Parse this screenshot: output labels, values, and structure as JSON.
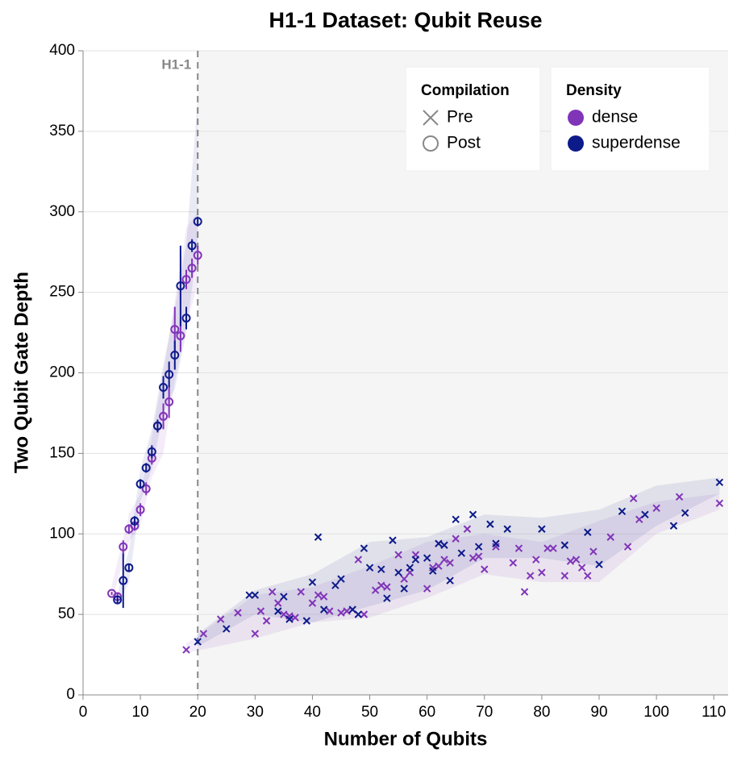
{
  "chart_data": {
    "type": "scatter",
    "title": "H1-1 Dataset: Qubit Reuse",
    "x_label": "Number of Qubits",
    "y_label": "Two Qubit Gate Depth",
    "xlim": [
      0,
      112.5
    ],
    "ylim": [
      0,
      400
    ],
    "xticks": [
      0,
      10,
      20,
      30,
      40,
      50,
      60,
      70,
      80,
      90,
      100,
      110
    ],
    "yticks": [
      0,
      50,
      100,
      150,
      200,
      250,
      300,
      350,
      400
    ],
    "grid": true,
    "threshold": {
      "x": 20,
      "label": "H1-1"
    },
    "legends": [
      {
        "title": "Compilation",
        "entries": [
          {
            "label": "Pre",
            "marker": "x"
          },
          {
            "label": "Post",
            "marker": "circle"
          }
        ]
      },
      {
        "title": "Density",
        "entries": [
          {
            "label": "dense",
            "color": "#8034b8"
          },
          {
            "label": "superdense",
            "color": "#0d1a8a"
          }
        ]
      }
    ],
    "bands": [
      {
        "density": "dense",
        "x": [
          5,
          8,
          10,
          12,
          14,
          16,
          18,
          20
        ],
        "lower": [
          58,
          95,
          105,
          135,
          150,
          195,
          230,
          255
        ],
        "upper": [
          68,
          112,
          125,
          160,
          200,
          245,
          290,
          300
        ]
      },
      {
        "density": "superdense",
        "x": [
          6,
          8,
          10,
          12,
          14,
          16,
          18,
          20
        ],
        "lower": [
          55,
          70,
          120,
          140,
          175,
          190,
          225,
          280
        ],
        "upper": [
          63,
          90,
          140,
          165,
          205,
          240,
          280,
          370
        ]
      },
      {
        "density": "dense",
        "x": [
          18,
          30,
          40,
          50,
          60,
          70,
          80,
          90,
          100,
          111
        ],
        "lower": [
          26,
          35,
          45,
          48,
          60,
          75,
          70,
          70,
          100,
          115
        ],
        "upper": [
          32,
          62,
          67,
          80,
          95,
          100,
          95,
          108,
          120,
          125
        ]
      },
      {
        "density": "superdense",
        "x": [
          20,
          30,
          40,
          50,
          60,
          70,
          80,
          90,
          100,
          111
        ],
        "lower": [
          30,
          50,
          45,
          55,
          65,
          85,
          85,
          80,
          105,
          125
        ],
        "upper": [
          38,
          65,
          75,
          95,
          98,
          112,
          110,
          115,
          130,
          135
        ]
      }
    ],
    "series": [
      {
        "density": "dense",
        "compilation": "Post",
        "x": [
          5,
          6,
          7,
          8,
          9,
          10,
          11,
          12,
          13,
          14,
          15,
          16,
          17,
          18,
          19,
          20
        ],
        "values": [
          63,
          61,
          92,
          103,
          105,
          115,
          128,
          147,
          167,
          173,
          182,
          227,
          223,
          258,
          265,
          273
        ],
        "errors": [
          1,
          2,
          4,
          3,
          3,
          4,
          4,
          4,
          3,
          8,
          10,
          14,
          10,
          6,
          6,
          6
        ]
      },
      {
        "density": "superdense",
        "compilation": "Post",
        "x": [
          6,
          7,
          8,
          9,
          10,
          11,
          12,
          13,
          14,
          15,
          16,
          17,
          18,
          19,
          20
        ],
        "values": [
          59,
          71,
          79,
          108,
          131,
          141,
          151,
          167,
          191,
          199,
          211,
          254,
          234,
          279,
          294
        ],
        "errors": [
          2,
          17,
          2,
          3,
          3,
          3,
          4,
          4,
          7,
          8,
          9,
          25,
          7,
          4,
          3
        ]
      },
      {
        "density": "dense",
        "compilation": "Pre",
        "x": [
          18,
          21,
          24,
          27,
          30,
          31,
          32,
          33,
          34,
          35,
          36,
          37,
          38,
          40,
          41,
          42,
          43,
          45,
          46,
          48,
          49,
          51,
          52,
          53,
          55,
          56,
          57,
          58,
          60,
          61,
          62,
          63,
          64,
          65,
          67,
          68,
          69,
          70,
          72,
          75,
          76,
          77,
          78,
          79,
          80,
          81,
          82,
          84,
          85,
          86,
          87,
          88,
          89,
          92,
          95,
          96,
          97,
          100,
          104,
          111
        ],
        "values": [
          28,
          38,
          47,
          51,
          38,
          52,
          46,
          64,
          57,
          50,
          49,
          48,
          64,
          57,
          62,
          61,
          52,
          51,
          52,
          84,
          50,
          65,
          68,
          67,
          87,
          72,
          76,
          87,
          66,
          79,
          80,
          84,
          82,
          97,
          103,
          85,
          86,
          78,
          92,
          82,
          91,
          64,
          74,
          84,
          76,
          91,
          91,
          74,
          83,
          84,
          79,
          74,
          89,
          98,
          92,
          122,
          109,
          116,
          123,
          119
        ]
      },
      {
        "density": "superdense",
        "compilation": "Pre",
        "x": [
          20,
          25,
          29,
          30,
          34,
          35,
          36,
          39,
          40,
          41,
          42,
          44,
          45,
          47,
          48,
          49,
          50,
          52,
          53,
          54,
          55,
          56,
          57,
          58,
          60,
          61,
          62,
          63,
          64,
          65,
          66,
          68,
          69,
          71,
          72,
          74,
          80,
          84,
          88,
          90,
          94,
          98,
          103,
          105,
          111
        ],
        "values": [
          33,
          41,
          62,
          62,
          52,
          61,
          47,
          46,
          70,
          98,
          53,
          68,
          72,
          53,
          50,
          91,
          79,
          78,
          60,
          96,
          76,
          66,
          79,
          84,
          85,
          77,
          94,
          93,
          71,
          109,
          88,
          112,
          92,
          106,
          94,
          103,
          103,
          93,
          101,
          81,
          114,
          112,
          105,
          113,
          132
        ]
      }
    ]
  }
}
